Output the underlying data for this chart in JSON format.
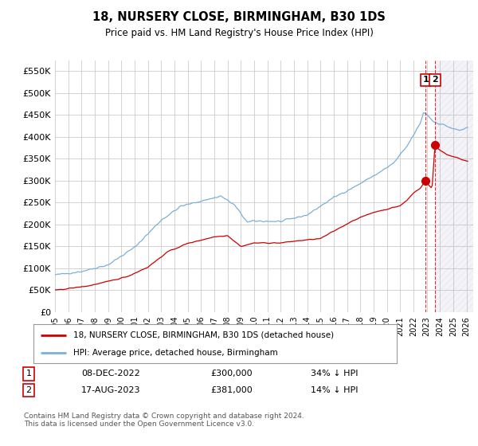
{
  "title": "18, NURSERY CLOSE, BIRMINGHAM, B30 1DS",
  "subtitle": "Price paid vs. HM Land Registry's House Price Index (HPI)",
  "ylabel_vals": [
    0,
    50000,
    100000,
    150000,
    200000,
    250000,
    300000,
    350000,
    400000,
    450000,
    500000,
    550000
  ],
  "ylim": [
    0,
    575000
  ],
  "xlim_start": 1995.0,
  "xlim_end": 2026.5,
  "hpi_line_color": "#7ab0d8",
  "price_line_color": "#cc0000",
  "grid_color": "#cccccc",
  "background_color": "#ffffff",
  "legend_label_red": "18, NURSERY CLOSE, BIRMINGHAM, B30 1DS (detached house)",
  "legend_label_blue": "HPI: Average price, detached house, Birmingham",
  "annotation1_label": "1",
  "annotation1_date": "08-DEC-2022",
  "annotation1_price": "£300,000",
  "annotation1_hpi": "34% ↓ HPI",
  "annotation2_label": "2",
  "annotation2_date": "17-AUG-2023",
  "annotation2_price": "£381,000",
  "annotation2_hpi": "14% ↓ HPI",
  "footer": "Contains HM Land Registry data © Crown copyright and database right 2024.\nThis data is licensed under the Open Government Licence v3.0.",
  "sale1_x": 2022.92,
  "sale1_y": 300000,
  "sale2_x": 2023.62,
  "sale2_y": 381000,
  "vline1_x": 2022.92,
  "vline2_x": 2023.62
}
